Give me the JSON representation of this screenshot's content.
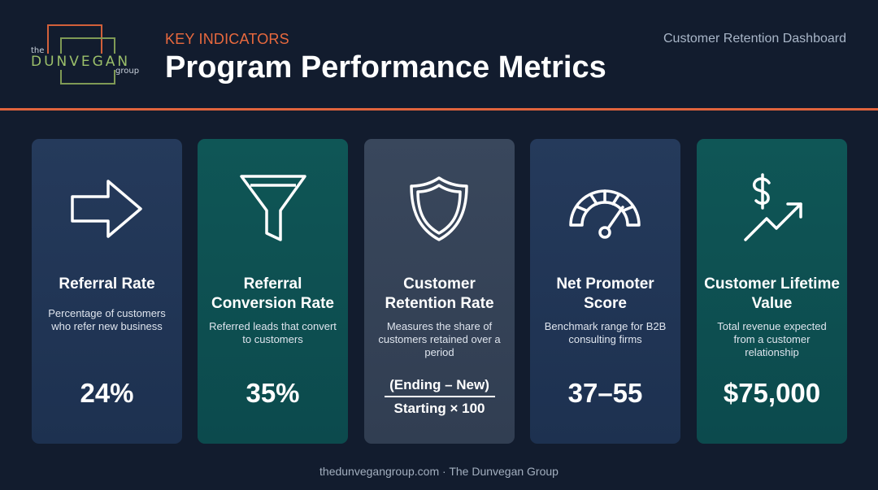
{
  "header": {
    "logo": {
      "the": "the",
      "name": "DUNVEGAN",
      "group": "group"
    },
    "kicker": "KEY INDICATORS",
    "title": "Program Performance Metrics",
    "dashboard_label": "Customer Retention Dashboard",
    "accent_color": "#e0643d"
  },
  "cards": [
    {
      "icon": "arrow-right-icon",
      "title": "Referral Rate",
      "description": "Percentage of customers who refer new business",
      "value": "24%",
      "style": "blue"
    },
    {
      "icon": "funnel-icon",
      "title": "Referral Conversion Rate",
      "description": "Referred leads that convert to customers",
      "value": "35%",
      "style": "teal"
    },
    {
      "icon": "shield-icon",
      "title": "Customer Retention Rate",
      "description": "Measures the share of customers retained over a period",
      "formula": {
        "numerator": "(Ending – New)",
        "denominator": "Starting × 100"
      },
      "style": "slate"
    },
    {
      "icon": "gauge-icon",
      "title": "Net Promoter Score",
      "description": "Benchmark range for B2B consulting firms",
      "value": "37–55",
      "style": "blue"
    },
    {
      "icon": "dollar-growth-icon",
      "title": "Customer Lifetime Value",
      "description": "Total revenue expected from a customer relationship",
      "value": "$75,000",
      "style": "teal"
    }
  ],
  "footer": "thedunvegangroup.com · The Dunvegan Group"
}
